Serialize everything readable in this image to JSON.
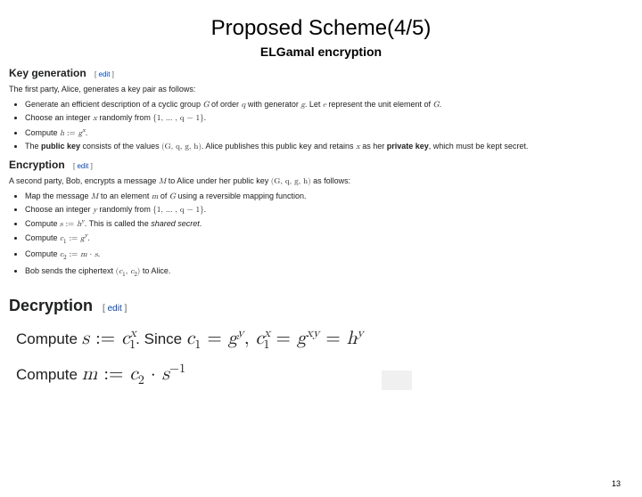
{
  "title": "Proposed Scheme(4/5)",
  "subtitle": "ELGamal encryption",
  "pageNumber": "13",
  "edit": {
    "open": "[",
    "label": "edit",
    "close": "]"
  },
  "keygen": {
    "heading": "Key generation",
    "intro": "The first party, Alice, generates a key pair as follows:",
    "b1a": "Generate an efficient description of a cyclic group ",
    "b1b": " of order ",
    "b1c": " with generator ",
    "b1d": ". Let ",
    "b1e": " represent the unit element of ",
    "b1f": ".",
    "b2a": "Choose an integer ",
    "b2b": " randomly from ",
    "b2c": ".",
    "b3a": "Compute ",
    "b3b": ".",
    "b4a": "The ",
    "b4pk": "public key",
    "b4b": " consists of the values ",
    "b4c": ". Alice publishes this public key and retains ",
    "b4d": " as her ",
    "b4sk": "private key",
    "b4e": ", which must be kept secret."
  },
  "enc": {
    "heading": "Encryption",
    "introA": "A second party, Bob, encrypts a message ",
    "introB": " to Alice under her public key ",
    "introC": " as follows:",
    "b1a": "Map the message ",
    "b1b": " to an element ",
    "b1c": " of ",
    "b1d": " using a reversible mapping function.",
    "b2a": "Choose an integer ",
    "b2b": " randomly from ",
    "b2c": ".",
    "b3a": "Compute ",
    "b3b": ". This is called the ",
    "b3ss": "shared secret",
    "b3c": ".",
    "b4a": "Compute ",
    "b4b": ".",
    "b5a": "Compute ",
    "b5b": ".",
    "b6a": "Bob sends the ciphertext ",
    "b6b": " to Alice."
  },
  "dec": {
    "heading": "Decryption",
    "l1pre": "Compute ",
    "l1since": ". Since ",
    "l2pre": "Compute "
  },
  "math": {
    "G": "G",
    "q": "q",
    "g": "g",
    "e": "e",
    "x": "x",
    "h": "h",
    "M": "M",
    "m": "m",
    "y": "y",
    "s": "s",
    "set": "{1, … , q − 1}",
    "hgx": "h := gˣ",
    "tupleGqgh": "(G, q, g, h)",
    "shy": "s := hʸ",
    "c1gy": "c₁ := gʸ",
    "c2ms": "c₂ := m · s",
    "cipher": "(c₁, c₂)"
  }
}
